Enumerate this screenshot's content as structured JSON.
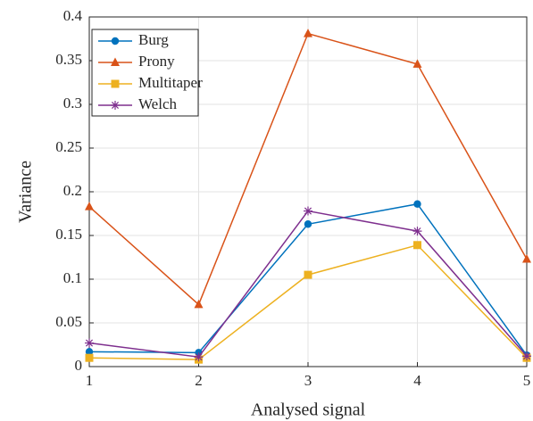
{
  "chart_data": {
    "type": "line",
    "xlabel": "Analysed signal",
    "ylabel": "Variance",
    "x": [
      1,
      2,
      3,
      4,
      5
    ],
    "series": [
      {
        "name": "Burg",
        "color": "#0072BD",
        "marker": "circle",
        "values": [
          0.017,
          0.016,
          0.163,
          0.186,
          0.013
        ]
      },
      {
        "name": "Prony",
        "color": "#D95319",
        "marker": "triangle",
        "values": [
          0.183,
          0.071,
          0.381,
          0.346,
          0.123
        ]
      },
      {
        "name": "Multitaper",
        "color": "#EDB120",
        "marker": "square",
        "values": [
          0.01,
          0.008,
          0.105,
          0.139,
          0.01
        ]
      },
      {
        "name": "Welch",
        "color": "#7E2F8E",
        "marker": "asterisk",
        "values": [
          0.027,
          0.011,
          0.178,
          0.155,
          0.012
        ]
      }
    ],
    "xlim": [
      1,
      5
    ],
    "xticks": [
      1,
      2,
      3,
      4,
      5
    ],
    "ylim": [
      0,
      0.4
    ],
    "yticks": [
      0,
      0.05,
      0.1,
      0.15,
      0.2,
      0.25,
      0.3,
      0.35,
      0.4
    ],
    "grid": true,
    "legend": "upper-left"
  }
}
